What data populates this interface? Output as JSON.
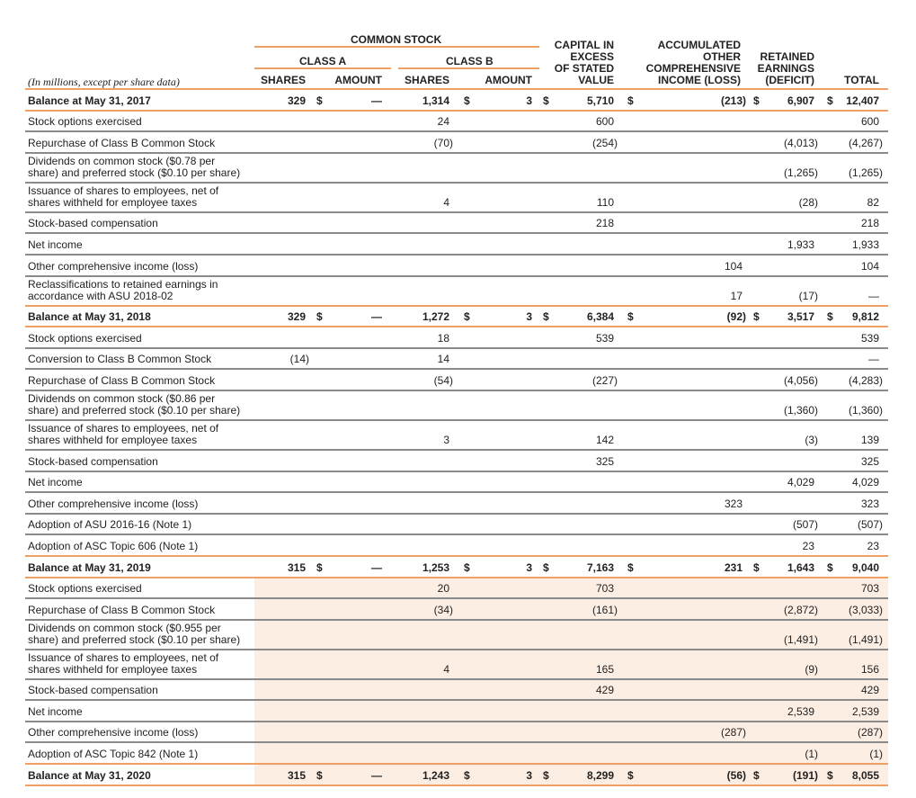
{
  "header": {
    "common_stock": "COMMON STOCK",
    "class_a": "CLASS A",
    "class_b": "CLASS B",
    "subtitle": "(In millions, except per share data)",
    "columns": [
      "SHARES",
      "AMOUNT",
      "SHARES",
      "AMOUNT",
      "CAPITAL IN\nEXCESS\nOF STATED\nVALUE",
      "ACCUMULATED\nOTHER\nCOMPREHENSIVE\nINCOME (LOSS)",
      "RETAINED\nEARNINGS\n(DEFICIT)",
      "TOTAL"
    ]
  },
  "currency_symbol": "$",
  "colors": {
    "accent_line": "#f0a064",
    "separator": "#8a8a8a",
    "highlight": "#fdeee3"
  },
  "rows": [
    {
      "label": "Balance at May 31, 2017",
      "balance": true,
      "values": [
        "329",
        "—",
        "1,314",
        "3",
        "5,710",
        "(213)",
        "6,907",
        "12,407"
      ]
    },
    {
      "label": "Stock options exercised",
      "values": [
        "",
        "",
        "24",
        "",
        "600",
        "",
        "",
        "600"
      ]
    },
    {
      "label": "Repurchase of Class B Common Stock",
      "values": [
        "",
        "",
        "(70)",
        "",
        "(254)",
        "",
        "(4,013)",
        "(4,267)"
      ]
    },
    {
      "label": "Dividends on common stock ($0.78 per\nshare) and preferred stock ($0.10 per share)",
      "double": true,
      "values": [
        "",
        "",
        "",
        "",
        "",
        "",
        "(1,265)",
        "(1,265)"
      ]
    },
    {
      "label": "Issuance of shares to employees, net of\nshares withheld for employee taxes",
      "double": true,
      "values": [
        "",
        "",
        "4",
        "",
        "110",
        "",
        "(28)",
        "82"
      ]
    },
    {
      "label": "Stock-based compensation",
      "values": [
        "",
        "",
        "",
        "",
        "218",
        "",
        "",
        "218"
      ]
    },
    {
      "label": "Net income",
      "values": [
        "",
        "",
        "",
        "",
        "",
        "",
        "1,933",
        "1,933"
      ]
    },
    {
      "label": "Other comprehensive income (loss)",
      "values": [
        "",
        "",
        "",
        "",
        "",
        "104",
        "",
        "104"
      ]
    },
    {
      "label": "Reclassifications to retained earnings in\naccordance with ASU 2018-02",
      "double": true,
      "values": [
        "",
        "",
        "",
        "",
        "",
        "17",
        "(17)",
        "—"
      ]
    },
    {
      "label": "Balance at May 31, 2018",
      "balance": true,
      "values": [
        "329",
        "—",
        "1,272",
        "3",
        "6,384",
        "(92)",
        "3,517",
        "9,812"
      ]
    },
    {
      "label": "Stock options exercised",
      "values": [
        "",
        "",
        "18",
        "",
        "539",
        "",
        "",
        "539"
      ]
    },
    {
      "label": "Conversion to Class B Common Stock",
      "values": [
        "(14)",
        "",
        "14",
        "",
        "",
        "",
        "",
        "—"
      ]
    },
    {
      "label": "Repurchase of Class B Common Stock",
      "values": [
        "",
        "",
        "(54)",
        "",
        "(227)",
        "",
        "(4,056)",
        "(4,283)"
      ]
    },
    {
      "label": "Dividends on common stock ($0.86 per\nshare) and preferred stock ($0.10 per share)",
      "double": true,
      "values": [
        "",
        "",
        "",
        "",
        "",
        "",
        "(1,360)",
        "(1,360)"
      ]
    },
    {
      "label": "Issuance of shares to employees, net of\nshares withheld for employee taxes",
      "double": true,
      "values": [
        "",
        "",
        "3",
        "",
        "142",
        "",
        "(3)",
        "139"
      ]
    },
    {
      "label": "Stock-based compensation",
      "values": [
        "",
        "",
        "",
        "",
        "325",
        "",
        "",
        "325"
      ]
    },
    {
      "label": "Net income",
      "values": [
        "",
        "",
        "",
        "",
        "",
        "",
        "4,029",
        "4,029"
      ]
    },
    {
      "label": "Other comprehensive income (loss)",
      "values": [
        "",
        "",
        "",
        "",
        "",
        "323",
        "",
        "323"
      ]
    },
    {
      "label": "Adoption of ASU 2016-16 (Note 1)",
      "values": [
        "",
        "",
        "",
        "",
        "",
        "",
        "(507)",
        "(507)"
      ]
    },
    {
      "label": "Adoption of ASC Topic 606 (Note 1)",
      "values": [
        "",
        "",
        "",
        "",
        "",
        "",
        "23",
        "23"
      ]
    },
    {
      "label": "Balance at May 31, 2019",
      "balance": true,
      "values": [
        "315",
        "—",
        "1,253",
        "3",
        "7,163",
        "231",
        "1,643",
        "9,040"
      ]
    },
    {
      "label": "Stock options exercised",
      "highlight": true,
      "values": [
        "",
        "",
        "20",
        "",
        "703",
        "",
        "",
        "703"
      ]
    },
    {
      "label": "Repurchase of Class B Common Stock",
      "highlight": true,
      "values": [
        "",
        "",
        "(34)",
        "",
        "(161)",
        "",
        "(2,872)",
        "(3,033)"
      ]
    },
    {
      "label": "Dividends on common stock ($0.955 per\nshare) and preferred stock ($0.10 per share)",
      "double": true,
      "highlight": true,
      "values": [
        "",
        "",
        "",
        "",
        "",
        "",
        "(1,491)",
        "(1,491)"
      ]
    },
    {
      "label": "Issuance of shares to employees, net of\nshares withheld for employee taxes",
      "double": true,
      "highlight": true,
      "values": [
        "",
        "",
        "4",
        "",
        "165",
        "",
        "(9)",
        "156"
      ]
    },
    {
      "label": "Stock-based compensation",
      "highlight": true,
      "values": [
        "",
        "",
        "",
        "",
        "429",
        "",
        "",
        "429"
      ]
    },
    {
      "label": "Net income",
      "highlight": true,
      "values": [
        "",
        "",
        "",
        "",
        "",
        "",
        "2,539",
        "2,539"
      ]
    },
    {
      "label": "Other comprehensive income (loss)",
      "highlight": true,
      "values": [
        "",
        "",
        "",
        "",
        "",
        "(287)",
        "",
        "(287)"
      ]
    },
    {
      "label": "Adoption of ASC Topic 842 (Note 1)",
      "highlight": true,
      "values": [
        "",
        "",
        "",
        "",
        "",
        "",
        "(1)",
        "(1)"
      ]
    },
    {
      "label": "Balance at May 31, 2020",
      "balance": true,
      "highlight": true,
      "values": [
        "315",
        "—",
        "1,243",
        "3",
        "8,299",
        "(56)",
        "(191)",
        "8,055"
      ]
    }
  ]
}
